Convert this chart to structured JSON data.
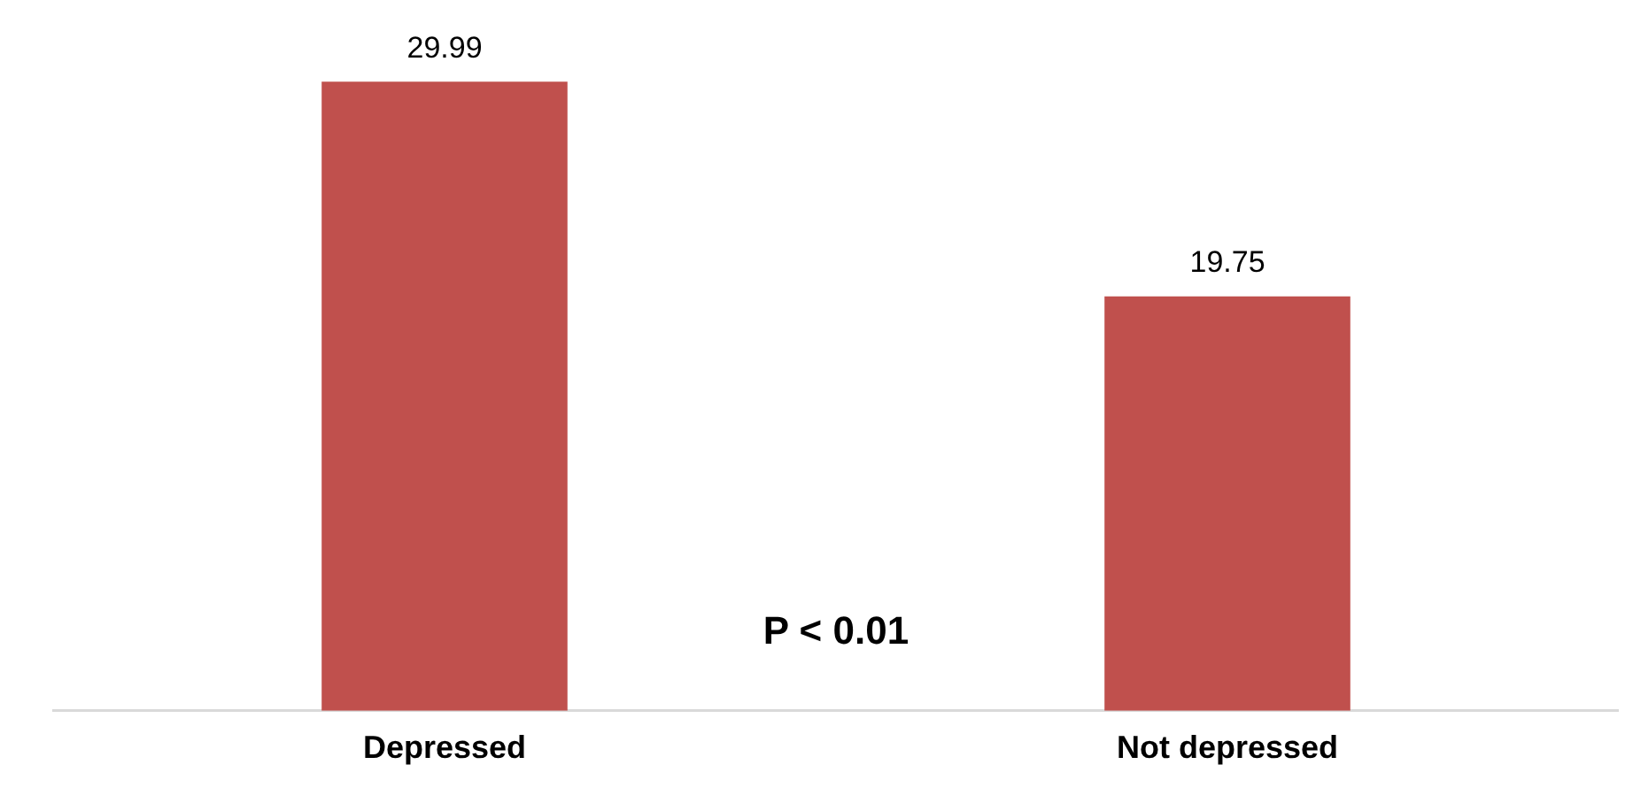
{
  "chart_data": {
    "type": "bar",
    "categories": [
      "Depressed",
      "Not depressed"
    ],
    "values": [
      29.99,
      19.75
    ],
    "color": "#c0504d",
    "data_labels": true,
    "tick_labels": "x",
    "annotations": [
      "P < 0.01"
    ]
  }
}
